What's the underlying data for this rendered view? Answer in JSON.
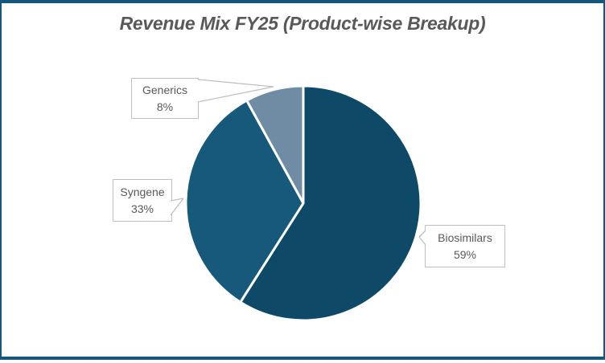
{
  "chart_data": {
    "type": "pie",
    "title": "Revenue Mix FY25 (Product-wise Breakup)",
    "labels": [
      "Biosimilars",
      "Syngene",
      "Generics"
    ],
    "values": [
      59,
      33,
      8
    ],
    "unit": "%",
    "colors": [
      "#0E4A68",
      "#16597B",
      "#708CA4"
    ],
    "slice_border_color": "#FFFFFF",
    "start_angle_deg": 0,
    "direction": "clockwise",
    "legend": "none",
    "data_labels": [
      {
        "label": "Biosimilars",
        "value_text": "59%"
      },
      {
        "label": "Syngene",
        "value_text": "33%"
      },
      {
        "label": "Generics",
        "value_text": "8%"
      }
    ]
  },
  "style": {
    "frame_border_color": "#15567A",
    "title_color": "#595959",
    "callout_border_color": "#BFBFBF",
    "callout_text_color": "#595959",
    "background": "#FFFFFF"
  }
}
